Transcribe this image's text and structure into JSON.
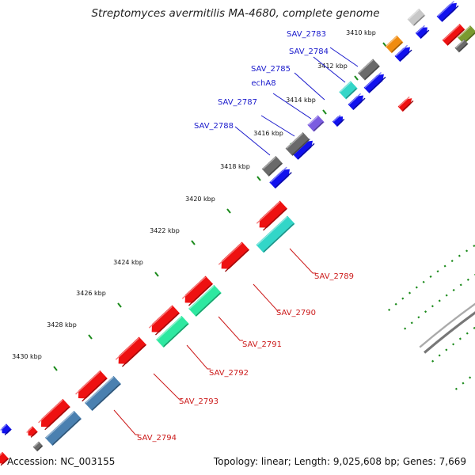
{
  "title": "Streptomyces avermitilis MA-4680, complete genome",
  "accession_label": "Accession: NC_003155",
  "summary": "Topology: linear; Length: 9,025,608 bp; Genes: 7,669",
  "tick_labels": [
    "3410 kbp",
    "3412 kbp",
    "3414 kbp",
    "3416 kbp",
    "3418 kbp",
    "3420 kbp",
    "3422 kbp",
    "3424 kbp",
    "3426 kbp",
    "3428 kbp",
    "3430 kbp"
  ],
  "forward_gene_labels": [
    "SAV_2783",
    "SAV_2784",
    "SAV_2785",
    "echA8",
    "SAV_2787",
    "SAV_2788"
  ],
  "reverse_gene_labels": [
    "SAV_2789",
    "SAV_2790",
    "SAV_2791",
    "SAV_2792",
    "SAV_2793",
    "SAV_2794"
  ],
  "colors": {
    "forward_label": "#1a1acc",
    "reverse_label": "#cc1a1a",
    "cds_red": "#ee1111",
    "cds_blue": "#1111ee",
    "gray": "#6a6a6a",
    "cyan": "#33d6c8",
    "green": "#2ee8a0",
    "steel": "#4a80b0",
    "purple": "#7b5ce0",
    "orange": "#f08c10",
    "olive": "#7a9a30",
    "dots": "#1a8a1a",
    "backbone": "#777777"
  }
}
